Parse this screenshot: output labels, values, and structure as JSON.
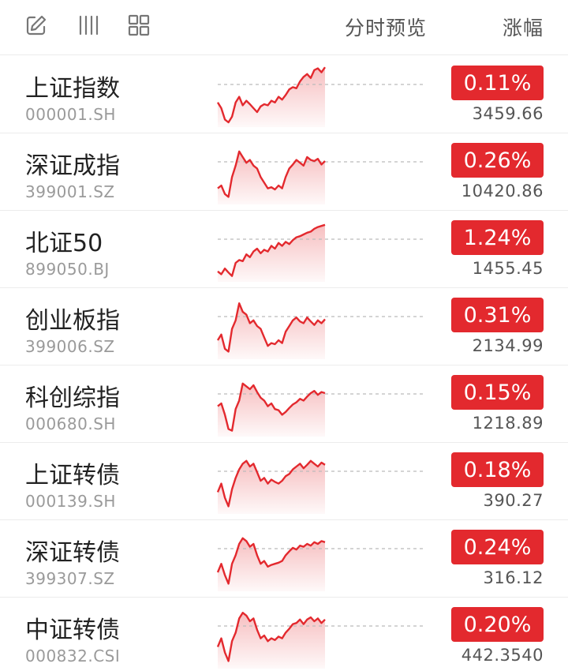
{
  "header": {
    "icons": [
      "edit-icon",
      "columns-icon",
      "grid-icon"
    ],
    "col_preview": "分时预览",
    "col_change": "涨幅"
  },
  "colors": {
    "up": "#e3292e",
    "baseline": "#bbbbbb"
  },
  "rows": [
    {
      "name": "上证指数",
      "code": "000001.SH",
      "change": "0.11%",
      "price": "3459.66",
      "trend": [
        0.35,
        0.25,
        0.05,
        0.0,
        0.1,
        0.35,
        0.45,
        0.3,
        0.38,
        0.32,
        0.25,
        0.18,
        0.28,
        0.32,
        0.3,
        0.38,
        0.35,
        0.45,
        0.4,
        0.48,
        0.58,
        0.62,
        0.6,
        0.72,
        0.8,
        0.85,
        0.78,
        0.92,
        0.95,
        0.88,
        0.97
      ]
    },
    {
      "name": "深证成指",
      "code": "399001.SZ",
      "change": "0.26%",
      "price": "10420.86",
      "trend": [
        0.2,
        0.25,
        0.1,
        0.05,
        0.4,
        0.6,
        0.85,
        0.75,
        0.65,
        0.7,
        0.6,
        0.55,
        0.4,
        0.3,
        0.2,
        0.22,
        0.18,
        0.25,
        0.2,
        0.4,
        0.55,
        0.62,
        0.7,
        0.65,
        0.6,
        0.75,
        0.7,
        0.68,
        0.72,
        0.62,
        0.68
      ]
    },
    {
      "name": "北证50",
      "code": "899050.BJ",
      "change": "1.24%",
      "price": "1455.45",
      "trend": [
        0.1,
        0.05,
        0.15,
        0.08,
        0.02,
        0.25,
        0.3,
        0.28,
        0.4,
        0.35,
        0.45,
        0.5,
        0.42,
        0.48,
        0.45,
        0.55,
        0.5,
        0.6,
        0.55,
        0.62,
        0.58,
        0.65,
        0.7,
        0.72,
        0.75,
        0.78,
        0.8,
        0.85,
        0.88,
        0.9,
        0.92
      ]
    },
    {
      "name": "创业板指",
      "code": "399006.SZ",
      "change": "0.31%",
      "price": "2134.99",
      "trend": [
        0.25,
        0.35,
        0.1,
        0.05,
        0.45,
        0.6,
        0.9,
        0.75,
        0.7,
        0.55,
        0.6,
        0.5,
        0.45,
        0.3,
        0.15,
        0.2,
        0.18,
        0.25,
        0.2,
        0.4,
        0.5,
        0.6,
        0.65,
        0.58,
        0.55,
        0.65,
        0.58,
        0.52,
        0.6,
        0.55,
        0.62
      ]
    },
    {
      "name": "科创综指",
      "code": "000680.SH",
      "change": "0.15%",
      "price": "1218.89",
      "trend": [
        0.45,
        0.5,
        0.3,
        0.05,
        0.02,
        0.4,
        0.55,
        0.85,
        0.8,
        0.75,
        0.82,
        0.7,
        0.6,
        0.55,
        0.45,
        0.5,
        0.4,
        0.38,
        0.3,
        0.35,
        0.42,
        0.48,
        0.52,
        0.58,
        0.55,
        0.62,
        0.68,
        0.72,
        0.65,
        0.7,
        0.68
      ]
    },
    {
      "name": "上证转债",
      "code": "000139.SH",
      "change": "0.18%",
      "price": "390.27",
      "trend": [
        0.3,
        0.45,
        0.2,
        0.05,
        0.35,
        0.55,
        0.7,
        0.8,
        0.85,
        0.75,
        0.8,
        0.65,
        0.5,
        0.55,
        0.45,
        0.52,
        0.48,
        0.45,
        0.5,
        0.58,
        0.62,
        0.7,
        0.75,
        0.8,
        0.72,
        0.78,
        0.85,
        0.8,
        0.75,
        0.82,
        0.78
      ]
    },
    {
      "name": "深证转债",
      "code": "399307.SZ",
      "change": "0.24%",
      "price": "316.12",
      "trend": [
        0.25,
        0.4,
        0.2,
        0.05,
        0.4,
        0.55,
        0.75,
        0.85,
        0.8,
        0.7,
        0.75,
        0.55,
        0.4,
        0.45,
        0.35,
        0.38,
        0.4,
        0.42,
        0.45,
        0.55,
        0.62,
        0.68,
        0.65,
        0.72,
        0.7,
        0.75,
        0.72,
        0.78,
        0.75,
        0.8,
        0.78
      ]
    },
    {
      "name": "中证转债",
      "code": "000832.CSI",
      "change": "0.20%",
      "price": "442.3540",
      "trend": [
        0.3,
        0.45,
        0.2,
        0.05,
        0.4,
        0.55,
        0.8,
        0.9,
        0.85,
        0.75,
        0.8,
        0.6,
        0.45,
        0.5,
        0.4,
        0.45,
        0.42,
        0.48,
        0.45,
        0.55,
        0.62,
        0.7,
        0.72,
        0.78,
        0.7,
        0.78,
        0.82,
        0.75,
        0.8,
        0.72,
        0.78
      ]
    }
  ]
}
